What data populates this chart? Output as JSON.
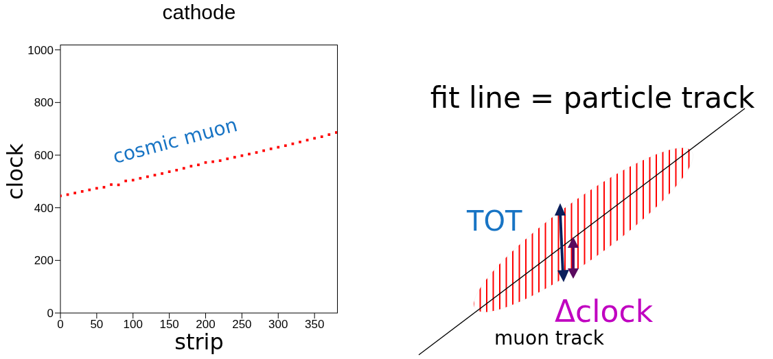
{
  "chart_data": [
    {
      "type": "scatter",
      "title": "cathode",
      "xlabel": "strip",
      "ylabel": "clock",
      "annotations": [
        "cosmic muon"
      ],
      "x": [
        0,
        10,
        20,
        30,
        40,
        50,
        60,
        70,
        80,
        90,
        100,
        110,
        120,
        130,
        140,
        150,
        160,
        170,
        180,
        190,
        200,
        210,
        220,
        230,
        240,
        250,
        260,
        270,
        280,
        290,
        300,
        310,
        320,
        330,
        340,
        350,
        360,
        370,
        380
      ],
      "series": [
        {
          "color": "#ff0000",
          "values": [
            445,
            450,
            456,
            462,
            468,
            474,
            478,
            488,
            487,
            502,
            505,
            512,
            518,
            524,
            530,
            537,
            543,
            550,
            558,
            563,
            572,
            575,
            579,
            586,
            592,
            598,
            604,
            610,
            617,
            624,
            630,
            636,
            643,
            650,
            657,
            664,
            670,
            678,
            686
          ]
        }
      ],
      "xlim": [
        0,
        382
      ],
      "xticks": [
        0,
        50,
        100,
        150,
        200,
        250,
        300,
        350
      ],
      "ylim": [
        0,
        1020
      ],
      "yticks": [
        0,
        200,
        400,
        600,
        800,
        1000
      ],
      "marker": "square",
      "grid": false,
      "legend": false
    },
    {
      "type": "other",
      "title": "fit line = particle track",
      "annotations": [
        "TOT",
        "Δclock",
        "muon track"
      ]
    }
  ]
}
